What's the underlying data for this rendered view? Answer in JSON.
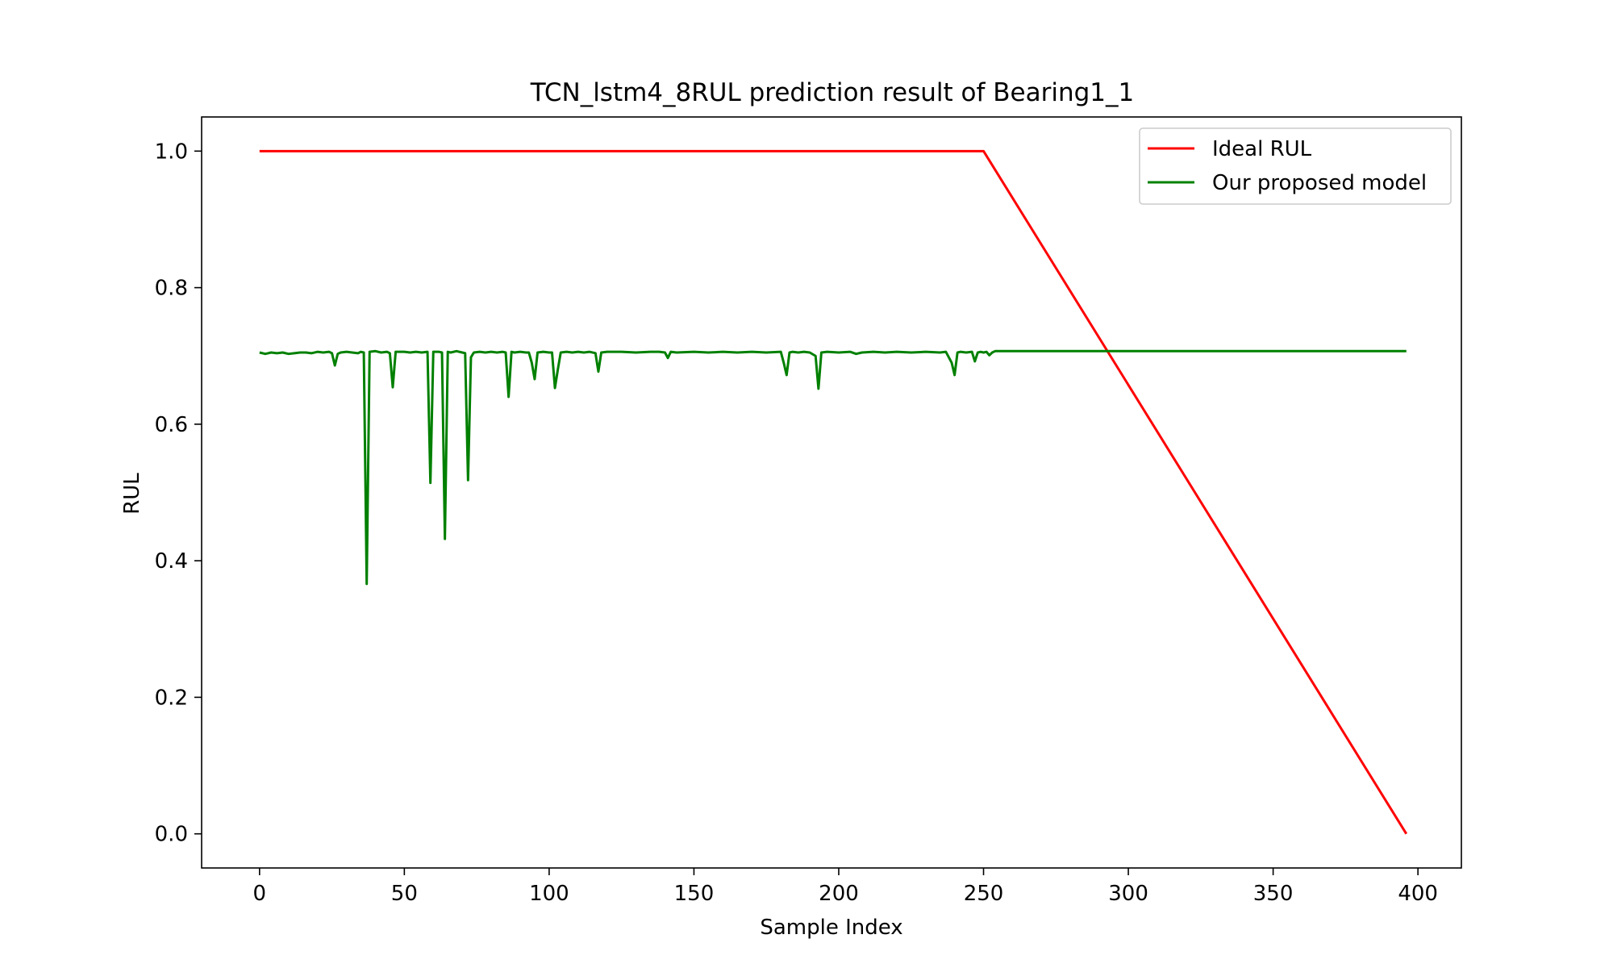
{
  "chart_data": {
    "type": "line",
    "title": "TCN_lstm4_8RUL prediction result of Bearing1_1",
    "xlabel": "Sample Index",
    "ylabel": "RUL",
    "xlim": [
      -20,
      415
    ],
    "ylim": [
      -0.05,
      1.05
    ],
    "xticks": [
      "0",
      "50",
      "100",
      "150",
      "200",
      "250",
      "300",
      "350",
      "400"
    ],
    "yticks": [
      "0.0",
      "0.2",
      "0.4",
      "0.6",
      "0.8",
      "1.0"
    ],
    "grid": false,
    "legend_position": "top-right",
    "series": [
      {
        "name": "Ideal RUL",
        "color": "#ff0000",
        "x": [
          0,
          250,
          396
        ],
        "y": [
          1.0,
          1.0,
          0.0
        ]
      },
      {
        "name": "Our proposed model",
        "color": "#008000",
        "x": [
          0,
          2,
          4,
          6,
          8,
          10,
          12,
          14,
          16,
          18,
          20,
          22,
          24,
          25,
          26,
          27,
          28,
          30,
          32,
          34,
          35,
          36,
          37,
          38,
          40,
          42,
          44,
          45,
          46,
          47,
          48,
          50,
          52,
          54,
          56,
          58,
          59,
          60,
          62,
          63,
          64,
          65,
          66,
          68,
          70,
          71,
          72,
          73,
          74,
          76,
          78,
          80,
          82,
          84,
          85,
          86,
          87,
          88,
          90,
          92,
          93,
          94,
          95,
          96,
          98,
          100,
          101,
          102,
          103,
          104,
          106,
          108,
          110,
          112,
          114,
          116,
          117,
          118,
          120,
          125,
          130,
          135,
          138,
          140,
          141,
          142,
          144,
          150,
          155,
          160,
          165,
          170,
          175,
          180,
          181,
          182,
          183,
          184,
          186,
          188,
          190,
          192,
          193,
          194,
          196,
          200,
          204,
          206,
          208,
          212,
          216,
          220,
          225,
          230,
          235,
          237,
          239,
          240,
          241,
          242,
          244,
          246,
          247,
          248,
          249,
          250,
          251,
          252,
          253,
          254,
          256,
          260,
          280,
          300,
          320,
          340,
          360,
          380,
          396
        ],
        "y": [
          0.705,
          0.703,
          0.705,
          0.704,
          0.705,
          0.703,
          0.704,
          0.705,
          0.705,
          0.704,
          0.706,
          0.705,
          0.706,
          0.704,
          0.686,
          0.703,
          0.705,
          0.706,
          0.705,
          0.704,
          0.706,
          0.705,
          0.366,
          0.706,
          0.707,
          0.705,
          0.706,
          0.704,
          0.654,
          0.706,
          0.706,
          0.706,
          0.705,
          0.706,
          0.705,
          0.706,
          0.514,
          0.706,
          0.706,
          0.705,
          0.432,
          0.706,
          0.705,
          0.707,
          0.705,
          0.704,
          0.518,
          0.698,
          0.705,
          0.706,
          0.705,
          0.706,
          0.705,
          0.706,
          0.705,
          0.64,
          0.706,
          0.705,
          0.706,
          0.705,
          0.705,
          0.69,
          0.666,
          0.705,
          0.706,
          0.705,
          0.705,
          0.653,
          0.68,
          0.705,
          0.706,
          0.705,
          0.706,
          0.705,
          0.706,
          0.704,
          0.677,
          0.705,
          0.706,
          0.706,
          0.705,
          0.706,
          0.706,
          0.705,
          0.697,
          0.706,
          0.705,
          0.706,
          0.705,
          0.706,
          0.705,
          0.706,
          0.705,
          0.706,
          0.69,
          0.672,
          0.705,
          0.706,
          0.705,
          0.706,
          0.705,
          0.7,
          0.652,
          0.705,
          0.706,
          0.705,
          0.706,
          0.703,
          0.705,
          0.706,
          0.705,
          0.706,
          0.705,
          0.706,
          0.705,
          0.706,
          0.69,
          0.672,
          0.705,
          0.706,
          0.705,
          0.706,
          0.692,
          0.705,
          0.706,
          0.705,
          0.706,
          0.701,
          0.705,
          0.707,
          0.707,
          0.707,
          0.707,
          0.707,
          0.707,
          0.707,
          0.707,
          0.707,
          0.707
        ]
      }
    ]
  }
}
